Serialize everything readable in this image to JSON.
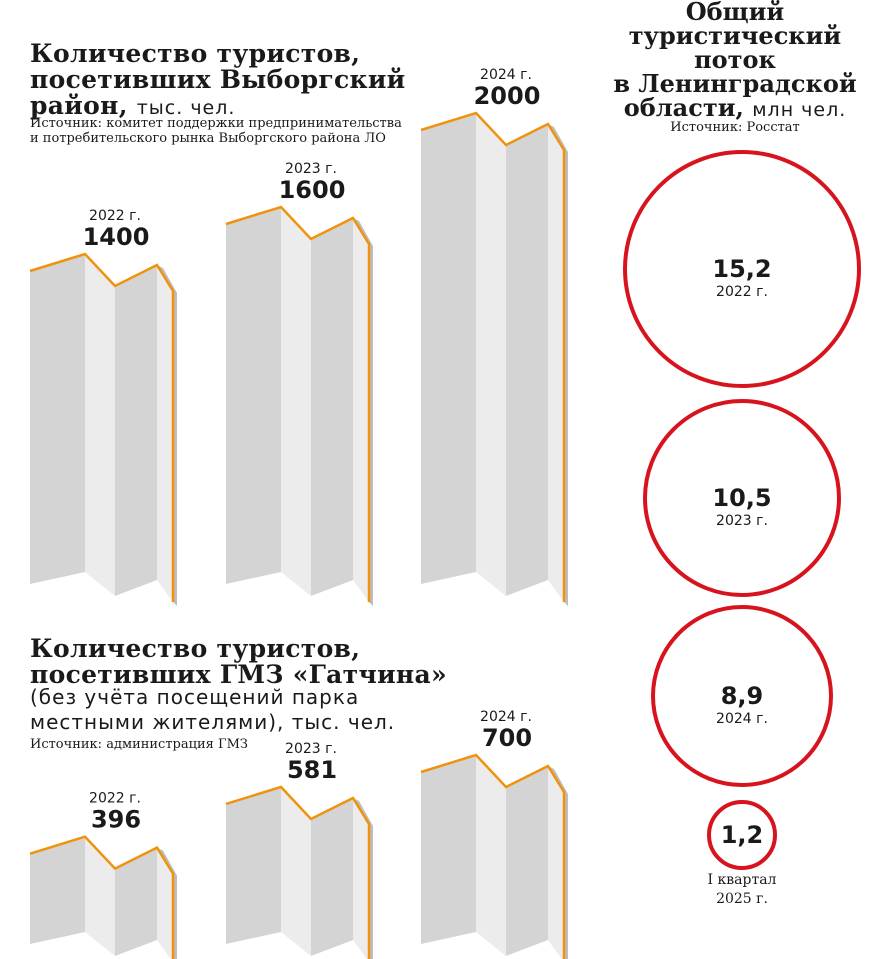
{
  "chart_data": [
    {
      "type": "bar",
      "title": "Количество туристов, посетивших Выборгский район,",
      "unit": "тыс. чел.",
      "source": "Источник: комитет поддержки предпринимательства и потребительского рынка Выборгского района ЛО",
      "source_lines": [
        "Источник: комитет поддержки предпринимательства",
        "и потребительского рынка Выборгского района ЛО"
      ],
      "categories": [
        "2022 г.",
        "2023 г.",
        "2024 г."
      ],
      "values": [
        1400,
        1600,
        2000
      ],
      "value_labels": [
        "1400",
        "1600",
        "2000"
      ],
      "colors": {
        "face": "#d4d4d4",
        "light": "#ececec",
        "edge": "#f0920e",
        "shadow": "#bdbdbd"
      }
    },
    {
      "type": "bar",
      "title_lines": [
        "Количество туристов,",
        "посетивших ГМЗ «Гатчина»"
      ],
      "note_lines": [
        "(без учёта посещений парка",
        "местными жителями), тыс. чел."
      ],
      "source": "Источник: администрация ГМЗ",
      "categories": [
        "2022 г.",
        "2023 г.",
        "2024 г."
      ],
      "values": [
        396,
        581,
        700
      ],
      "value_labels": [
        "396",
        "581",
        "700"
      ]
    },
    {
      "type": "bubble",
      "title": "Общий туристический поток в Ленинградской области,",
      "title_lines": [
        "Общий",
        "туристический",
        "поток",
        "в Ленинградской",
        "области,"
      ],
      "unit": "млн чел.",
      "source": "Источник: Росстат",
      "categories": [
        "2022 г.",
        "2023 г.",
        "2024 г.",
        "I квартал 2025 г."
      ],
      "category_lines": [
        [
          "2022 г."
        ],
        [
          "2023 г."
        ],
        [
          "2024 г."
        ],
        [
          "I квартал",
          "2025 г."
        ]
      ],
      "values": [
        15.2,
        10.5,
        8.9,
        1.2
      ],
      "value_labels": [
        "15,2",
        "10,5",
        "8,9",
        "1,2"
      ],
      "color": "#d7141e"
    }
  ],
  "chart1_title_lines": [
    "Количество туристов,",
    "посетивших Выборгский",
    "район,"
  ]
}
